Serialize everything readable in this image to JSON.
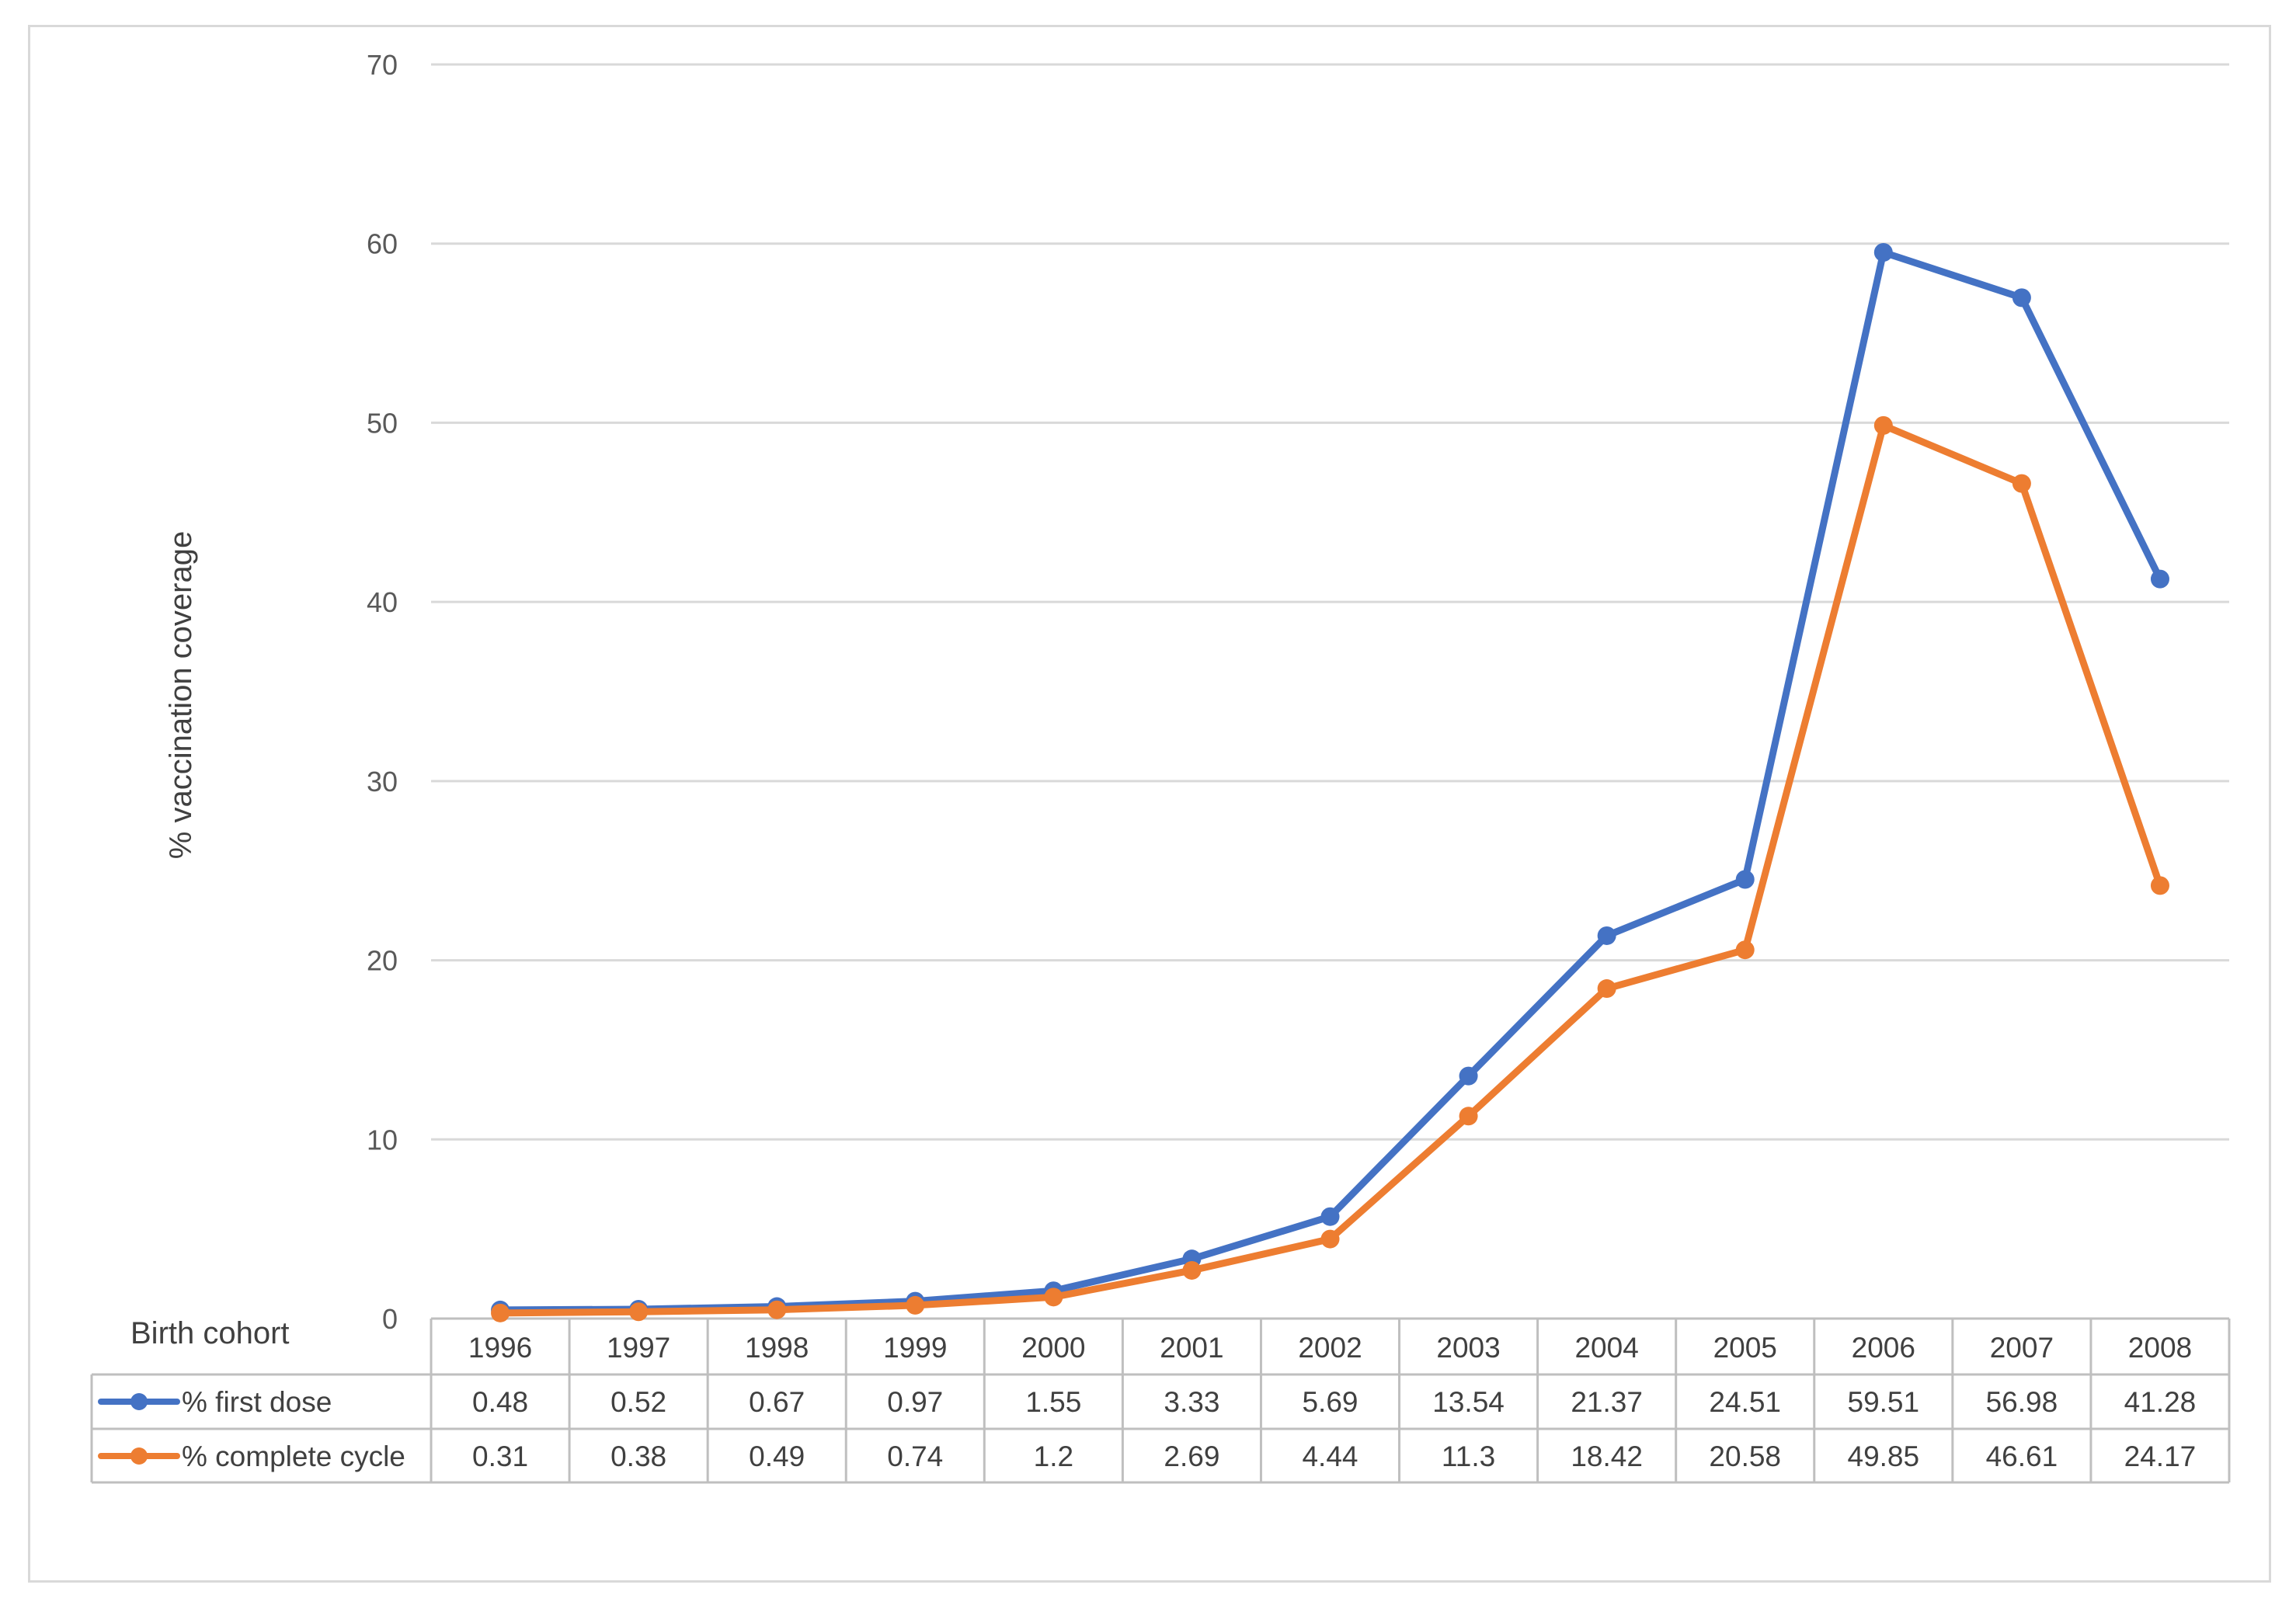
{
  "chart_data": {
    "type": "line",
    "title": "",
    "ylabel": "% vaccination coverage",
    "xlabel": "Birth cohort",
    "ylim": [
      0,
      70
    ],
    "yticks": [
      0,
      10,
      20,
      30,
      40,
      50,
      60,
      70
    ],
    "grid": true,
    "legend": "bottom-left (in data table)",
    "categories": [
      "1996",
      "1997",
      "1998",
      "1999",
      "2000",
      "2001",
      "2002",
      "2003",
      "2004",
      "2005",
      "2006",
      "2007",
      "2008"
    ],
    "series": [
      {
        "name": "% first dose",
        "color": "#4472c4",
        "values": [
          0.48,
          0.52,
          0.67,
          0.97,
          1.55,
          3.33,
          5.69,
          13.54,
          21.37,
          24.51,
          59.51,
          56.98,
          41.28
        ],
        "labels": [
          "0.48",
          "0.52",
          "0.67",
          "0.97",
          "1.55",
          "3.33",
          "5.69",
          "13.54",
          "21.37",
          "24.51",
          "59.51",
          "56.98",
          "41.28"
        ]
      },
      {
        "name": "% complete cycle",
        "color": "#ed7d31",
        "values": [
          0.31,
          0.38,
          0.49,
          0.74,
          1.2,
          2.69,
          4.44,
          11.3,
          18.42,
          20.58,
          49.85,
          46.61,
          24.17
        ],
        "labels": [
          "0.31",
          "0.38",
          "0.49",
          "0.74",
          "1.2",
          "2.69",
          "4.44",
          "11.3",
          "18.42",
          "20.58",
          "49.85",
          "46.61",
          "24.17"
        ]
      }
    ]
  },
  "colors": {
    "gridline": "#d9d9d9",
    "table_border": "#bfbfbf",
    "text": "#404040",
    "tick_text": "#595959"
  }
}
